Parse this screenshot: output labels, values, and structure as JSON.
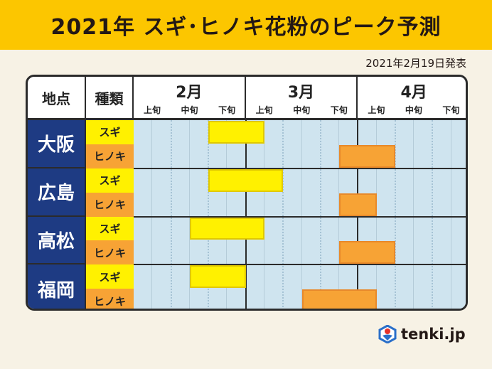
{
  "title": "2021年 スギ･ヒノキ花粉のピーク予測",
  "date": "2021年2月19日発表",
  "headers": {
    "station": "地点",
    "type": "種類"
  },
  "months": [
    "2月",
    "3月",
    "4月"
  ],
  "periods": [
    "上旬",
    "中旬",
    "下旬"
  ],
  "logo": "tenki.jp",
  "colors": {
    "sugi": "#fff100",
    "hinoki": "#f7a335",
    "station": "#1e3b83",
    "title_bar": "#fcc600"
  },
  "chart_data": {
    "type": "gantt",
    "title": "2021年 スギ･ヒノキ花粉のピーク予測",
    "x_unit": "旬 (0 = 2月上旬 start, 9 = 4月下旬 end)",
    "xlim": [
      0,
      9
    ],
    "types": [
      "スギ",
      "ヒノキ"
    ],
    "stations": [
      {
        "name": "大阪",
        "sugi": [
          2,
          3.5
        ],
        "hinoki": [
          5.5,
          7
        ]
      },
      {
        "name": "広島",
        "sugi": [
          2,
          4
        ],
        "hinoki": [
          5.5,
          6.5
        ]
      },
      {
        "name": "高松",
        "sugi": [
          1.5,
          3.5
        ],
        "hinoki": [
          5.5,
          7
        ]
      },
      {
        "name": "福岡",
        "sugi": [
          1.5,
          3
        ],
        "hinoki": [
          4.5,
          6.5
        ]
      }
    ]
  }
}
